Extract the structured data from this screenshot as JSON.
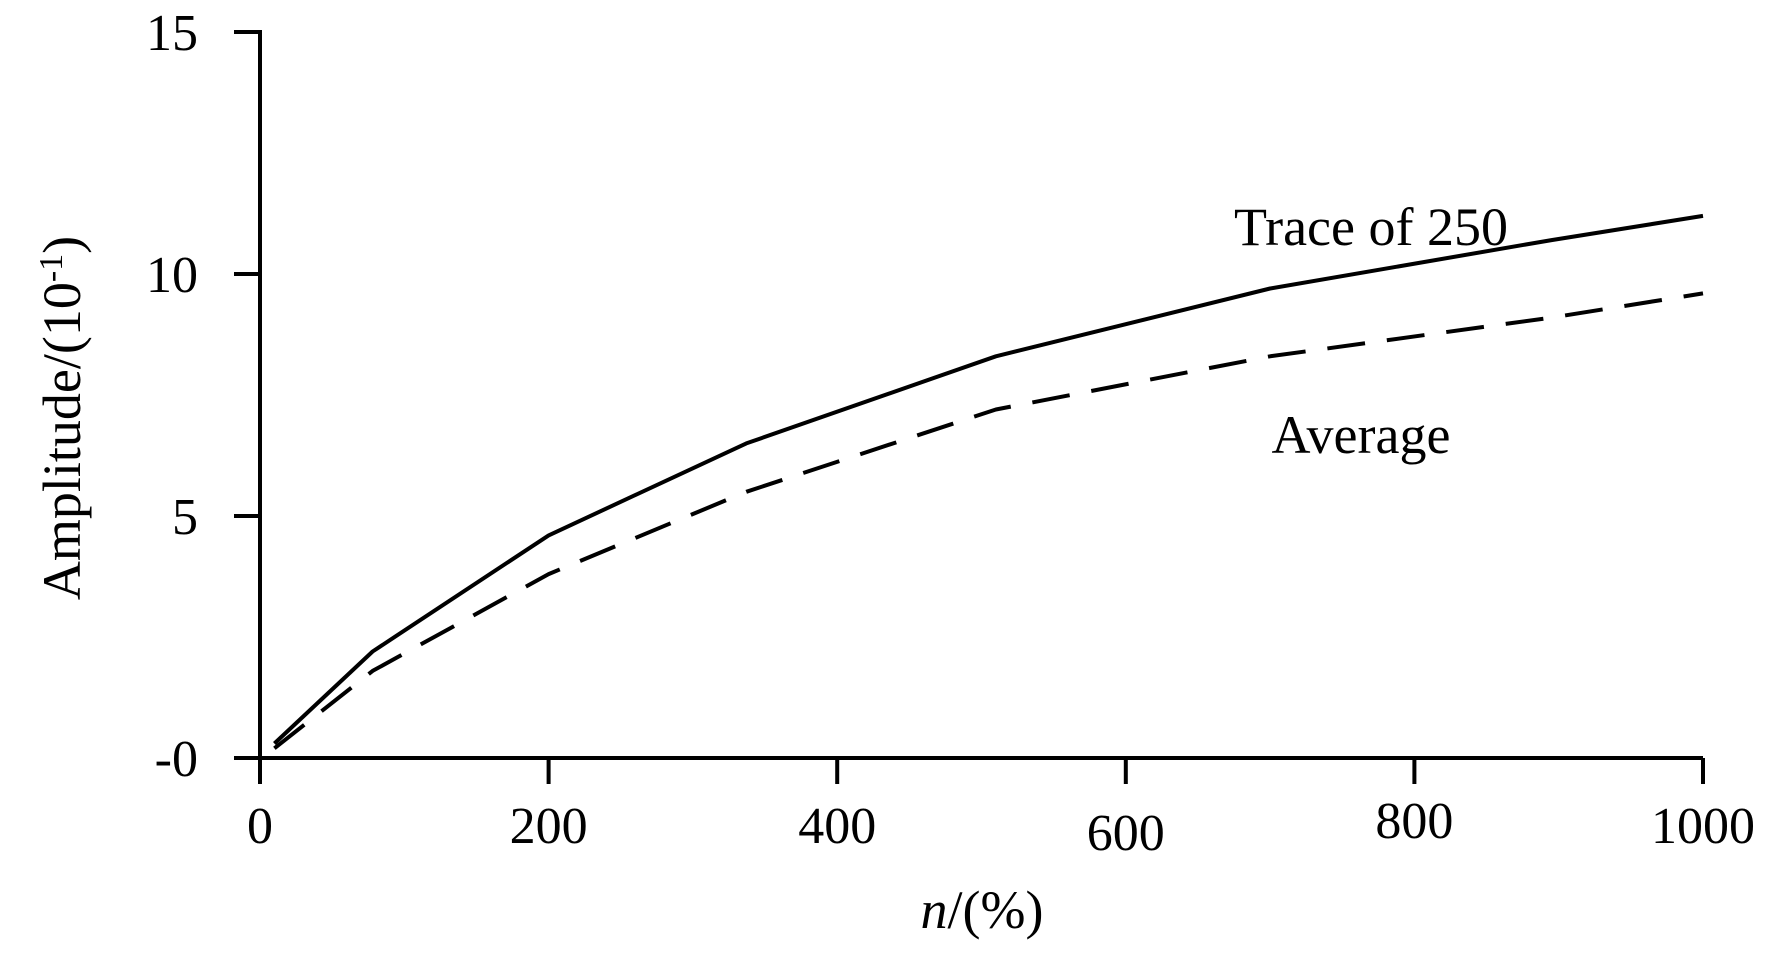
{
  "chart_data": {
    "type": "line",
    "title": "",
    "xlabel": {
      "var": "n",
      "unit": "/(%)"
    },
    "ylabel": {
      "prefix": "Amplitude/(10",
      "sup": "-1",
      "suffix": ")"
    },
    "xlim": [
      0,
      1000
    ],
    "ylim": [
      0,
      15
    ],
    "xticks": [
      {
        "value": 0,
        "label": "0"
      },
      {
        "value": 200,
        "label": "200"
      },
      {
        "value": 400,
        "label": "400"
      },
      {
        "value": 600,
        "label": "600"
      },
      {
        "value": 800,
        "label": "800"
      },
      {
        "value": 1000,
        "label": "1000"
      }
    ],
    "yticks": [
      {
        "value": 0,
        "label": "-0"
      },
      {
        "value": 5,
        "label": "5"
      },
      {
        "value": 10,
        "label": "10"
      },
      {
        "value": 15,
        "label": "15"
      }
    ],
    "grid": false,
    "legend": "none",
    "series": [
      {
        "name": "Trace of 250",
        "style": "solid",
        "color": "#000000",
        "x": [
          10,
          78,
          200,
          337,
          510,
          700,
          895,
          1000
        ],
        "y": [
          0.3,
          2.2,
          4.6,
          6.5,
          8.3,
          9.7,
          10.7,
          11.2
        ]
      },
      {
        "name": "Average",
        "style": "dashed",
        "color": "#000000",
        "x": [
          10,
          78,
          200,
          337,
          510,
          700,
          895,
          1000
        ],
        "y": [
          0.2,
          1.8,
          3.8,
          5.5,
          7.2,
          8.3,
          9.1,
          9.6
        ]
      }
    ],
    "annotations": [
      {
        "text": "Trace of 250",
        "x": 675,
        "y": 10.6
      },
      {
        "text": "Average",
        "x": 701,
        "y": 6.3
      }
    ]
  }
}
